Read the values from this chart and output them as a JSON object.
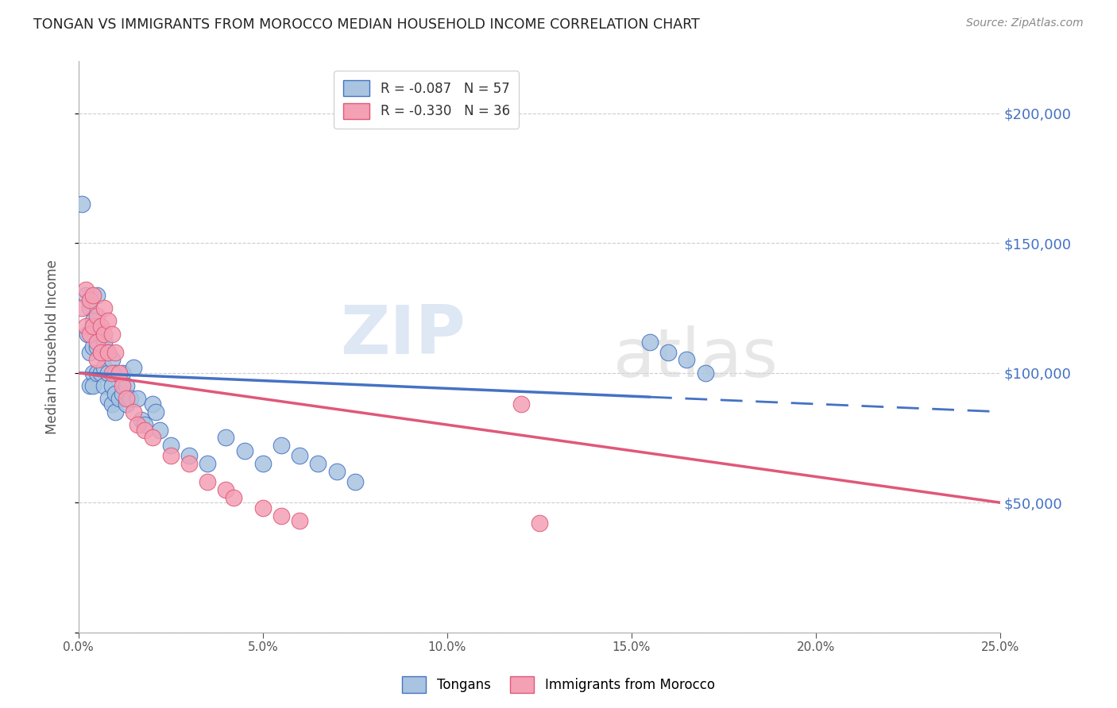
{
  "title": "TONGAN VS IMMIGRANTS FROM MOROCCO MEDIAN HOUSEHOLD INCOME CORRELATION CHART",
  "source": "Source: ZipAtlas.com",
  "ylabel": "Median Household Income",
  "xlim": [
    0.0,
    0.25
  ],
  "ylim": [
    0,
    220000
  ],
  "yticks": [
    0,
    50000,
    100000,
    150000,
    200000
  ],
  "blue_line_color": "#4472c4",
  "pink_line_color": "#e05878",
  "blue_dot_color": "#a8c4e0",
  "pink_dot_color": "#f4a0b5",
  "background_color": "#ffffff",
  "grid_color": "#cccccc",
  "title_color": "#222222",
  "right_axis_color": "#4472c4",
  "watermark": "ZIPatlas",
  "legend_blue": "R = -0.087   N = 57",
  "legend_pink": "R = -0.330   N = 36",
  "legend_blue_bold": "-0.087",
  "legend_pink_bold": "-0.330",
  "legend_blue_n": "57",
  "legend_pink_n": "36",
  "source_text": "Source: ZipAtlas.com",
  "tongans_x": [
    0.001,
    0.002,
    0.0025,
    0.003,
    0.003,
    0.003,
    0.004,
    0.004,
    0.004,
    0.004,
    0.005,
    0.005,
    0.005,
    0.005,
    0.006,
    0.006,
    0.006,
    0.007,
    0.007,
    0.007,
    0.008,
    0.008,
    0.008,
    0.009,
    0.009,
    0.009,
    0.01,
    0.01,
    0.01,
    0.011,
    0.012,
    0.012,
    0.013,
    0.013,
    0.014,
    0.015,
    0.016,
    0.017,
    0.018,
    0.02,
    0.021,
    0.022,
    0.025,
    0.03,
    0.035,
    0.04,
    0.045,
    0.05,
    0.055,
    0.06,
    0.065,
    0.07,
    0.075,
    0.155,
    0.16,
    0.165,
    0.17
  ],
  "tongans_y": [
    165000,
    130000,
    115000,
    125000,
    108000,
    95000,
    120000,
    110000,
    100000,
    95000,
    130000,
    118000,
    110000,
    100000,
    115000,
    108000,
    100000,
    112000,
    102000,
    95000,
    108000,
    100000,
    90000,
    105000,
    95000,
    88000,
    100000,
    92000,
    85000,
    90000,
    100000,
    92000,
    95000,
    88000,
    90000,
    102000,
    90000,
    82000,
    80000,
    88000,
    85000,
    78000,
    72000,
    68000,
    65000,
    75000,
    70000,
    65000,
    72000,
    68000,
    65000,
    62000,
    58000,
    112000,
    108000,
    105000,
    100000
  ],
  "morocco_x": [
    0.001,
    0.002,
    0.002,
    0.003,
    0.003,
    0.004,
    0.004,
    0.005,
    0.005,
    0.005,
    0.006,
    0.006,
    0.007,
    0.007,
    0.008,
    0.008,
    0.009,
    0.009,
    0.01,
    0.011,
    0.012,
    0.013,
    0.015,
    0.016,
    0.018,
    0.02,
    0.025,
    0.03,
    0.035,
    0.04,
    0.042,
    0.05,
    0.055,
    0.06,
    0.12,
    0.125
  ],
  "morocco_y": [
    125000,
    132000,
    118000,
    128000,
    115000,
    130000,
    118000,
    122000,
    112000,
    105000,
    118000,
    108000,
    125000,
    115000,
    120000,
    108000,
    115000,
    100000,
    108000,
    100000,
    95000,
    90000,
    85000,
    80000,
    78000,
    75000,
    68000,
    65000,
    58000,
    55000,
    52000,
    48000,
    45000,
    43000,
    88000,
    42000
  ]
}
